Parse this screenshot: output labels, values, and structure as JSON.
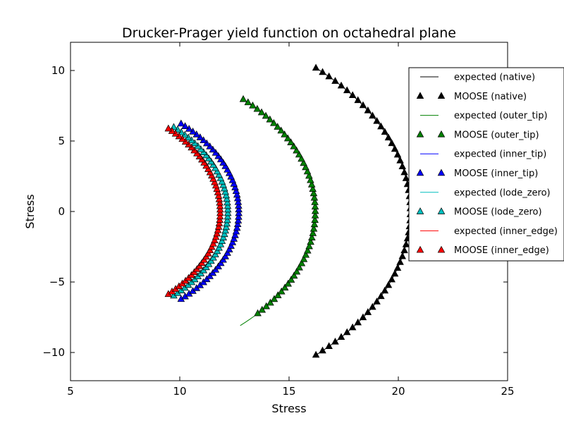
{
  "chart_data": {
    "type": "scatter",
    "title": "Drucker-Prager yield function on octahedral plane",
    "xlabel": "Stress",
    "ylabel": "Stress",
    "xlim": [
      5,
      25
    ],
    "ylim": [
      -12,
      12
    ],
    "xticks": [
      5,
      10,
      15,
      20,
      25
    ],
    "yticks": [
      -10,
      -5,
      0,
      5,
      10
    ],
    "xtick_labels": [
      "5",
      "10",
      "15",
      "20",
      "25"
    ],
    "ytick_labels": [
      "−10",
      "−5",
      "0",
      "5",
      "10"
    ],
    "grid": false,
    "legend_position": "right",
    "series": [
      {
        "name": "expected (native)",
        "kind": "line",
        "color": "#000000",
        "cx": 6.4,
        "radius": 14.15,
        "theta_range": [
          -46,
          46
        ],
        "points": 60
      },
      {
        "name": "MOOSE (native)",
        "kind": "marker",
        "color": "#000000",
        "cx": 6.4,
        "radius": 14.15,
        "theta_range": [
          -46,
          46
        ],
        "points": 54
      },
      {
        "name": "expected (outer_tip)",
        "kind": "line",
        "color": "#008000",
        "cx": 4.95,
        "radius": 11.25,
        "theta_range": [
          -46,
          45
        ],
        "points": 60
      },
      {
        "name": "MOOSE (outer_tip)",
        "kind": "marker",
        "color": "#008000",
        "cx": 4.95,
        "radius": 11.25,
        "theta_range": [
          -40,
          45
        ],
        "points": 54
      },
      {
        "name": "expected (inner_tip)",
        "kind": "line",
        "color": "#0000ff",
        "cx": 4.05,
        "radius": 8.65,
        "theta_range": [
          -46,
          46
        ],
        "points": 60
      },
      {
        "name": "MOOSE (inner_tip)",
        "kind": "marker",
        "color": "#0000ff",
        "cx": 4.05,
        "radius": 8.65,
        "theta_range": [
          -46,
          46
        ],
        "points": 54
      },
      {
        "name": "expected (lode_zero)",
        "kind": "line",
        "color": "#00bfbf",
        "cx": 3.75,
        "radius": 8.45,
        "theta_range": [
          -45,
          45
        ],
        "points": 60
      },
      {
        "name": "MOOSE (lode_zero)",
        "kind": "marker",
        "color": "#00bfbf",
        "cx": 3.75,
        "radius": 8.45,
        "theta_range": [
          -45,
          45
        ],
        "points": 54
      },
      {
        "name": "expected (inner_edge)",
        "kind": "line",
        "color": "#ff0000",
        "cx": 3.4,
        "radius": 8.45,
        "theta_range": [
          -44,
          44
        ],
        "points": 60
      },
      {
        "name": "MOOSE (inner_edge)",
        "kind": "marker",
        "color": "#ff0000",
        "cx": 3.4,
        "radius": 8.45,
        "theta_range": [
          -44,
          44
        ],
        "points": 54
      }
    ]
  }
}
